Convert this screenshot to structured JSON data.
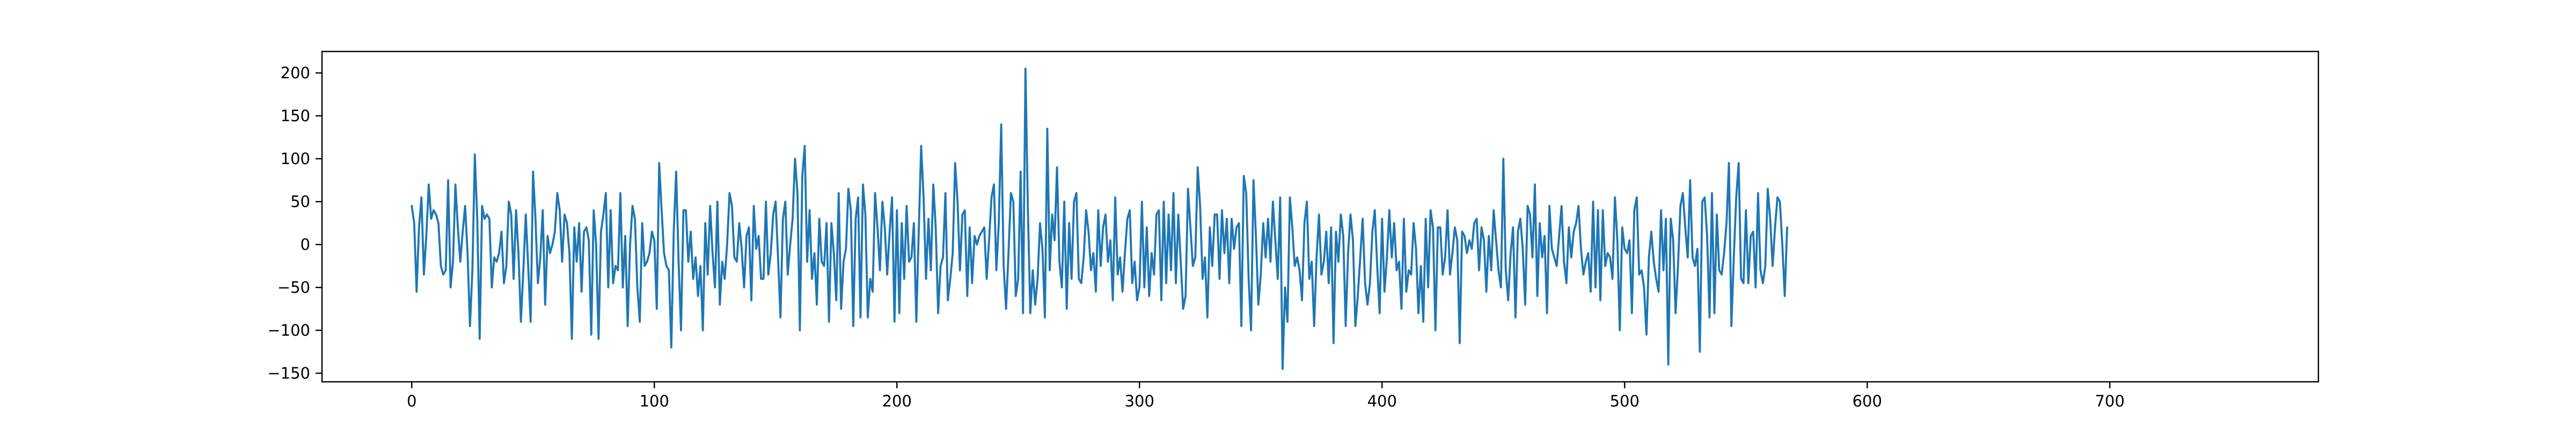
{
  "chart_data": {
    "type": "line",
    "title": "",
    "xlabel": "",
    "ylabel": "",
    "xlim": [
      -37,
      786
    ],
    "ylim": [
      -160,
      225
    ],
    "xticks": [
      0,
      100,
      200,
      300,
      400,
      500,
      600,
      700
    ],
    "yticks": [
      -150,
      -100,
      -50,
      0,
      50,
      100,
      150,
      200
    ],
    "xtick_labels": [
      "0",
      "100",
      "200",
      "300",
      "400",
      "500",
      "600",
      "700"
    ],
    "ytick_labels": [
      "−150",
      "−100",
      "−50",
      "0",
      "50",
      "100",
      "150",
      "200"
    ],
    "grid": false,
    "legend": "none",
    "series": [
      {
        "color": "#1f77b4",
        "x_start": 0,
        "x_step": 1,
        "values": [
          45,
          25,
          -55,
          20,
          55,
          -35,
          10,
          70,
          30,
          40,
          35,
          25,
          -25,
          -35,
          -30,
          75,
          -50,
          -20,
          70,
          20,
          -20,
          15,
          45,
          -10,
          -95,
          -30,
          105,
          30,
          -110,
          45,
          30,
          35,
          30,
          -50,
          -15,
          -20,
          -10,
          15,
          -45,
          -25,
          50,
          35,
          -40,
          40,
          -10,
          -90,
          -30,
          35,
          -25,
          -90,
          85,
          30,
          -45,
          -15,
          40,
          -70,
          10,
          -10,
          0,
          15,
          60,
          40,
          -20,
          35,
          25,
          -10,
          -110,
          20,
          -20,
          25,
          -55,
          15,
          20,
          5,
          -105,
          40,
          0,
          -110,
          15,
          35,
          60,
          -50,
          40,
          -45,
          -25,
          -30,
          60,
          -50,
          10,
          -95,
          0,
          45,
          30,
          -50,
          -90,
          25,
          -25,
          -20,
          -10,
          15,
          5,
          -75,
          95,
          40,
          -10,
          -25,
          -30,
          -120,
          15,
          85,
          -20,
          -100,
          40,
          40,
          -20,
          15,
          -40,
          -15,
          -60,
          -25,
          -100,
          25,
          -35,
          45,
          -10,
          -50,
          50,
          -70,
          -20,
          -40,
          0,
          60,
          45,
          -15,
          -20,
          25,
          -5,
          -50,
          10,
          20,
          -65,
          45,
          -5,
          10,
          -40,
          -40,
          50,
          -35,
          -10,
          35,
          50,
          -15,
          -85,
          30,
          50,
          -35,
          0,
          30,
          100,
          60,
          -100,
          80,
          115,
          -20,
          40,
          -40,
          -10,
          -70,
          30,
          -20,
          -25,
          25,
          -90,
          25,
          -10,
          -65,
          60,
          -75,
          -20,
          -5,
          65,
          40,
          -95,
          30,
          55,
          -85,
          70,
          35,
          -85,
          -40,
          -55,
          60,
          20,
          -30,
          50,
          20,
          -35,
          15,
          55,
          -90,
          40,
          -80,
          25,
          -40,
          45,
          -20,
          -15,
          25,
          -90,
          15,
          115,
          55,
          -40,
          30,
          -30,
          70,
          20,
          -80,
          -25,
          -15,
          60,
          -65,
          -40,
          -10,
          95,
          50,
          -30,
          35,
          40,
          -60,
          20,
          -45,
          10,
          0,
          10,
          15,
          20,
          -40,
          5,
          55,
          70,
          -30,
          25,
          140,
          -25,
          -75,
          -10,
          60,
          50,
          -60,
          -40,
          85,
          -80,
          205,
          40,
          -80,
          -30,
          -70,
          -40,
          25,
          -5,
          -85,
          135,
          -30,
          35,
          5,
          90,
          -20,
          -50,
          50,
          -75,
          25,
          -40,
          50,
          60,
          -40,
          -45,
          -15,
          40,
          15,
          -30,
          -10,
          -55,
          40,
          -25,
          20,
          35,
          -20,
          5,
          -65,
          55,
          -35,
          -15,
          -55,
          -10,
          30,
          40,
          -45,
          -20,
          -65,
          -50,
          50,
          -50,
          20,
          -60,
          -10,
          -35,
          35,
          40,
          -65,
          50,
          -45,
          35,
          -30,
          60,
          -45,
          35,
          -20,
          -75,
          -60,
          65,
          20,
          -25,
          -15,
          90,
          45,
          -40,
          -15,
          -85,
          20,
          -25,
          35,
          35,
          -40,
          40,
          -10,
          30,
          -45,
          30,
          -5,
          20,
          25,
          -95,
          80,
          60,
          -40,
          -100,
          75,
          10,
          -70,
          -35,
          25,
          -15,
          30,
          -20,
          50,
          5,
          -40,
          55,
          -145,
          -50,
          -90,
          55,
          20,
          -25,
          -15,
          -30,
          -65,
          25,
          50,
          -40,
          -20,
          -95,
          -15,
          35,
          -35,
          -20,
          15,
          -45,
          20,
          -115,
          15,
          -20,
          35,
          10,
          -95,
          -10,
          35,
          5,
          -95,
          -60,
          -15,
          30,
          -45,
          -70,
          -45,
          15,
          40,
          -25,
          -80,
          30,
          -55,
          -15,
          40,
          -15,
          25,
          -30,
          -20,
          -75,
          30,
          -55,
          -30,
          -35,
          25,
          -5,
          -80,
          -25,
          -90,
          30,
          -50,
          40,
          20,
          -100,
          20,
          20,
          -35,
          -15,
          40,
          -35,
          -10,
          20,
          5,
          -115,
          15,
          10,
          -10,
          5,
          -5,
          25,
          30,
          -30,
          20,
          5,
          -55,
          10,
          -30,
          40,
          5,
          -30,
          -50,
          100,
          -30,
          -65,
          -10,
          20,
          -85,
          15,
          30,
          -5,
          -70,
          45,
          35,
          -15,
          70,
          -60,
          25,
          -15,
          10,
          -80,
          45,
          -5,
          -15,
          -25,
          10,
          45,
          -20,
          -45,
          20,
          -15,
          15,
          25,
          45,
          -5,
          -35,
          -20,
          -10,
          -55,
          50,
          -50,
          40,
          -65,
          40,
          -25,
          -10,
          -15,
          -40,
          55,
          5,
          -100,
          20,
          -5,
          -10,
          5,
          -80,
          40,
          55,
          -35,
          -30,
          -50,
          -105,
          -15,
          15,
          -20,
          -40,
          -55,
          40,
          -30,
          30,
          -140,
          30,
          5,
          -80,
          -25,
          45,
          60,
          20,
          -15,
          75,
          -15,
          -25,
          -5,
          -125,
          50,
          55,
          10,
          -85,
          60,
          -80,
          35,
          -30,
          -35,
          -10,
          25,
          95,
          -95,
          -15,
          55,
          95,
          -40,
          -45,
          40,
          -45,
          10,
          15,
          -50,
          60,
          -30,
          -45,
          -25,
          65,
          30,
          -25,
          20,
          55,
          50,
          0,
          -60,
          20
        ]
      }
    ]
  }
}
